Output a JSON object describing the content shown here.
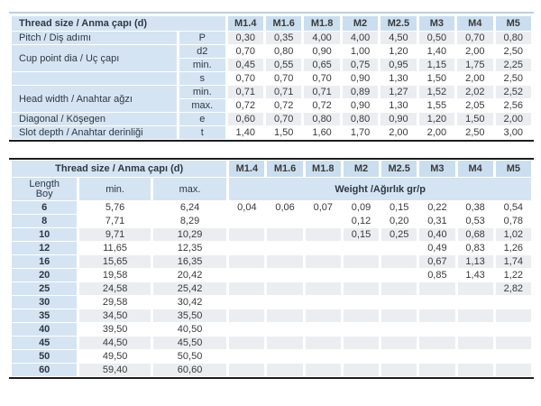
{
  "colors": {
    "header_blue": "#cbdeef",
    "cell_blue": "#d5e4f2",
    "stripe_gray": "#ebedf1",
    "top_rule_blue": "#b9d1e7",
    "dark_rule": "#1d1d1d"
  },
  "spec_table": {
    "title": "Thread size / Anma çapı (d)",
    "size_columns": [
      "M1.4",
      "M1.6",
      "M1.8",
      "M2",
      "M2.5",
      "M3",
      "M4",
      "M5"
    ],
    "rows": [
      {
        "key": "pitch",
        "label": "Pitch / Diş adımı",
        "label_rowspan": 1,
        "param": "P",
        "shaded": true,
        "values": [
          "0,30",
          "0,35",
          "4,00",
          "4,00",
          "4,50",
          "0,50",
          "0,70",
          "0,80"
        ]
      },
      {
        "key": "cup-point-d2",
        "label": "Cup point dia / Uç çapı",
        "label_rowspan": 2,
        "param": "d2",
        "shaded": false,
        "values": [
          "0,70",
          "0,80",
          "0,90",
          "1,00",
          "1,20",
          "1,40",
          "2,00",
          "2,50"
        ]
      },
      {
        "key": "cup-point-min",
        "label": null,
        "param": "min.",
        "shaded": true,
        "values": [
          "0,45",
          "0,55",
          "0,65",
          "0,75",
          "0,95",
          "1,15",
          "1,75",
          "2,25"
        ]
      },
      {
        "key": "s",
        "label": "",
        "label_rowspan": 1,
        "param": "s",
        "shaded": false,
        "values": [
          "0,70",
          "0,70",
          "0,70",
          "0,90",
          "1,30",
          "1,50",
          "2,00",
          "2,50"
        ]
      },
      {
        "key": "head-width-min",
        "label": "Head width / Anahtar ağzı",
        "label_rowspan": 2,
        "param": "min.",
        "shaded": true,
        "values": [
          "0,71",
          "0,71",
          "0,71",
          "0,89",
          "1,27",
          "1,52",
          "2,02",
          "2,52"
        ]
      },
      {
        "key": "head-width-max",
        "label": null,
        "param": "max.",
        "shaded": false,
        "values": [
          "0,72",
          "0,72",
          "0,72",
          "0,90",
          "1,30",
          "1,55",
          "2,05",
          "2,56"
        ]
      },
      {
        "key": "diagonal",
        "label": "Diagonal / Köşegen",
        "label_rowspan": 1,
        "param": "e",
        "shaded": true,
        "values": [
          "0,60",
          "0,70",
          "0,80",
          "0,80",
          "0,90",
          "1,20",
          "1,50",
          "2,00"
        ]
      },
      {
        "key": "slot-depth",
        "label": "Slot depth / Anahtar derinliği",
        "label_rowspan": 1,
        "param": "t",
        "shaded": false,
        "values": [
          "1,40",
          "1,50",
          "1,60",
          "1,70",
          "2,00",
          "2,00",
          "2,50",
          "3,00"
        ]
      }
    ]
  },
  "length_table": {
    "title": "Thread size / Anma çapı (d)",
    "size_columns": [
      "M1.4",
      "M1.6",
      "M1.8",
      "M2",
      "M2.5",
      "M3",
      "M4",
      "M5"
    ],
    "length_label_en": "Length",
    "length_label_tr": "Boy",
    "min_header": "min.",
    "max_header": "max.",
    "weight_header": "Weight /Ağırlık gr/p",
    "rows": [
      {
        "length": "6",
        "min": "5,76",
        "max": "6,24",
        "shaded": false,
        "weights": [
          "0,04",
          "0,06",
          "0,07",
          "0,09",
          "0,15",
          "0,22",
          "0,38",
          "0,54"
        ]
      },
      {
        "length": "8",
        "min": "7,71",
        "max": "8,29",
        "shaded": false,
        "weights": [
          "",
          "",
          "",
          "0,12",
          "0,20",
          "0,31",
          "0,53",
          "0,78"
        ]
      },
      {
        "length": "10",
        "min": "9,71",
        "max": "10,29",
        "shaded": true,
        "weights": [
          "",
          "",
          "",
          "0,15",
          "0,25",
          "0,40",
          "0,68",
          "1,02"
        ]
      },
      {
        "length": "12",
        "min": "11,65",
        "max": "12,35",
        "shaded": false,
        "weights": [
          "",
          "",
          "",
          "",
          "",
          "0,49",
          "0,83",
          "1,26"
        ]
      },
      {
        "length": "16",
        "min": "15,65",
        "max": "16,35",
        "shaded": true,
        "weights": [
          "",
          "",
          "",
          "",
          "",
          "0,67",
          "1,13",
          "1,74"
        ]
      },
      {
        "length": "20",
        "min": "19,58",
        "max": "20,42",
        "shaded": false,
        "weights": [
          "",
          "",
          "",
          "",
          "",
          "0,85",
          "1,43",
          "1,22"
        ]
      },
      {
        "length": "25",
        "min": "24,58",
        "max": "25,42",
        "shaded": true,
        "weights": [
          "",
          "",
          "",
          "",
          "",
          "",
          "",
          "2,82"
        ]
      },
      {
        "length": "30",
        "min": "29,58",
        "max": "30,42",
        "shaded": false,
        "weights": [
          "",
          "",
          "",
          "",
          "",
          "",
          "",
          ""
        ]
      },
      {
        "length": "35",
        "min": "34,50",
        "max": "35,50",
        "shaded": true,
        "weights": [
          "",
          "",
          "",
          "",
          "",
          "",
          "",
          ""
        ]
      },
      {
        "length": "40",
        "min": "39,50",
        "max": "40,50",
        "shaded": false,
        "weights": [
          "",
          "",
          "",
          "",
          "",
          "",
          "",
          ""
        ]
      },
      {
        "length": "45",
        "min": "44,50",
        "max": "45,50",
        "shaded": true,
        "weights": [
          "",
          "",
          "",
          "",
          "",
          "",
          "",
          ""
        ]
      },
      {
        "length": "50",
        "min": "49,50",
        "max": "50,50",
        "shaded": false,
        "weights": [
          "",
          "",
          "",
          "",
          "",
          "",
          "",
          ""
        ]
      },
      {
        "length": "60",
        "min": "59,40",
        "max": "60,60",
        "shaded": true,
        "weights": [
          "",
          "",
          "",
          "",
          "",
          "",
          "",
          ""
        ]
      }
    ]
  }
}
